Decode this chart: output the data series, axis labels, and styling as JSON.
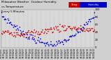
{
  "background_color": "#d0d0d0",
  "plot_bg_color": "#d8d8d8",
  "blue_color": "#0000cc",
  "red_color": "#cc0000",
  "legend_red": "Temp",
  "legend_blue": "Humidity",
  "ylim": [
    0,
    100
  ],
  "y_ticks": [
    0,
    20,
    40,
    60,
    80,
    100
  ],
  "dot_size": 1.5,
  "grid_color": "#aaaaaa",
  "title_color": "#000000"
}
